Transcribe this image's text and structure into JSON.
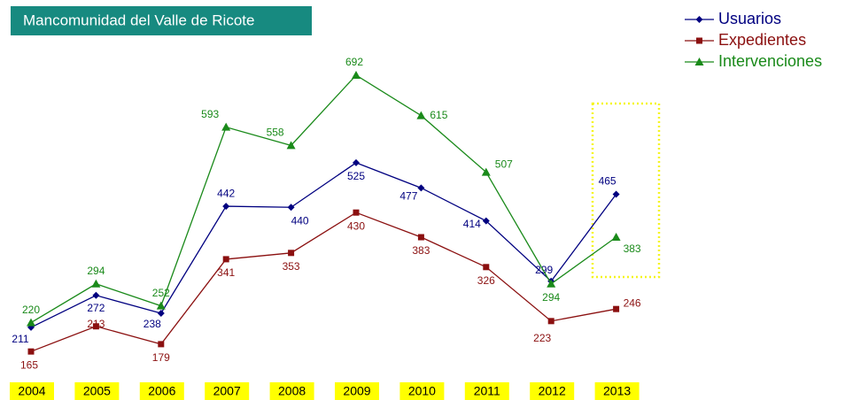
{
  "chart_data": {
    "type": "line",
    "title": "Mancomunidad del Valle de Ricote",
    "categories": [
      "2004",
      "2005",
      "2006",
      "2007",
      "2008",
      "2009",
      "2010",
      "2011",
      "2012",
      "2013"
    ],
    "series": [
      {
        "name": "Usuarios",
        "color": "#000080",
        "marker": "diamond",
        "values": [
          211,
          272,
          238,
          442,
          440,
          525,
          477,
          414,
          299,
          465
        ]
      },
      {
        "name": "Expedientes",
        "color": "#8b1010",
        "marker": "square",
        "values": [
          165,
          213,
          179,
          341,
          353,
          430,
          383,
          326,
          223,
          246
        ]
      },
      {
        "name": "Intervenciones",
        "color": "#1a8a1a",
        "marker": "triangle",
        "values": [
          220,
          294,
          252,
          593,
          558,
          692,
          615,
          507,
          294,
          383
        ]
      }
    ],
    "ylim": [
      100,
      750
    ],
    "legend": "top-right"
  }
}
